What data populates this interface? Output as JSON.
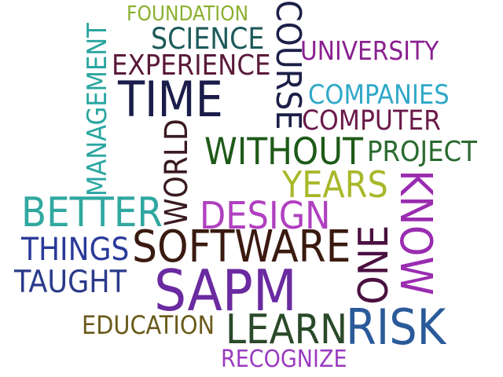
{
  "words": {
    "foundation": "FOUNDATION",
    "science": "SCIENCE",
    "course": "COURSE",
    "university": "UNIVERSITY",
    "experience": "EXPERIENCE",
    "management": "MANAGEMENT",
    "time": "TIME",
    "companies": "COMPANIES",
    "computer": "COMPUTER",
    "world": "WORLD",
    "without": "WITHOUT",
    "project": "PROJECT",
    "years": "YEARS",
    "know": "KNOW",
    "better": "BETTER",
    "design": "DESIGN",
    "one": "ONE",
    "things": "THINGS",
    "software": "SOFTWARE",
    "taught": "TAUGHT",
    "sapm": "SAPM",
    "education": "EDUCATION",
    "learn": "LEARN",
    "risk": "RISK",
    "recognize": "RECOGNIZE"
  },
  "colors": {
    "foundation": "#8bb02f",
    "science": "#1e5a5a",
    "course": "#1c2048",
    "university": "#8a2090",
    "experience": "#5a1a3a",
    "management": "#2aa6a0",
    "time": "#1a1c4a",
    "companies": "#30a8c8",
    "computer": "#6a1a4a",
    "world": "#3a1a20",
    "without": "#1e5a18",
    "project": "#2a6a30",
    "years": "#a8b82a",
    "know": "#9a2cb0",
    "better": "#30a8a0",
    "design": "#b040c0",
    "one": "#4a1040",
    "things": "#2a3a9a",
    "software": "#3a1a10",
    "taught": "#2a3a8a",
    "sapm": "#6a2aa0",
    "education": "#6a5a1a",
    "learn": "#2a4a2a",
    "risk": "#2a5a9a",
    "recognize": "#9a3ac0"
  }
}
